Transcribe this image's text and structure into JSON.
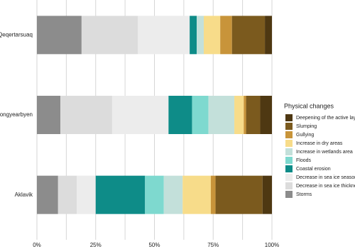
{
  "chart_data": {
    "type": "stacked-barh",
    "categories": [
      "Qeqertarsuaq",
      "Longyearbyen",
      "Aklavik"
    ],
    "series": [
      {
        "name": "Storms",
        "color": "#8c8c8c",
        "values": [
          19,
          10,
          9
        ]
      },
      {
        "name": "Decrease in sea ice thickness",
        "color": "#dcdcdc",
        "values": [
          24,
          22,
          8
        ]
      },
      {
        "name": "Decrease in sea ice season",
        "color": "#ececec",
        "values": [
          22,
          24,
          8
        ]
      },
      {
        "name": "Coastal erosion",
        "color": "#0e8c88",
        "values": [
          3,
          10,
          21
        ]
      },
      {
        "name": "Floods",
        "color": "#7ed9cf",
        "values": [
          0,
          7,
          8
        ]
      },
      {
        "name": "Increase in wetlands area",
        "color": "#c3e0da",
        "values": [
          3,
          11,
          8
        ]
      },
      {
        "name": "Increase in dry areas",
        "color": "#f7dc8a",
        "values": [
          7,
          4,
          12
        ]
      },
      {
        "name": "Gullying",
        "color": "#c8943a",
        "values": [
          5,
          1,
          2
        ]
      },
      {
        "name": "Slumping",
        "color": "#7b5a1e",
        "values": [
          14,
          6,
          20
        ]
      },
      {
        "name": "Deepening of the active layer",
        "color": "#4e3812",
        "values": [
          3,
          5,
          4
        ]
      }
    ],
    "xlim": [
      0,
      100
    ],
    "xticks": [
      {
        "value": 0,
        "label": "0%"
      },
      {
        "value": 25,
        "label": "25%"
      },
      {
        "value": 50,
        "label": "50%"
      },
      {
        "value": 75,
        "label": "75%"
      },
      {
        "value": 100,
        "label": "100%"
      }
    ],
    "xminorticks": [
      12.5,
      37.5,
      62.5,
      87.5
    ],
    "grid": true,
    "legend_title": "Physical changes",
    "legend": "right"
  }
}
